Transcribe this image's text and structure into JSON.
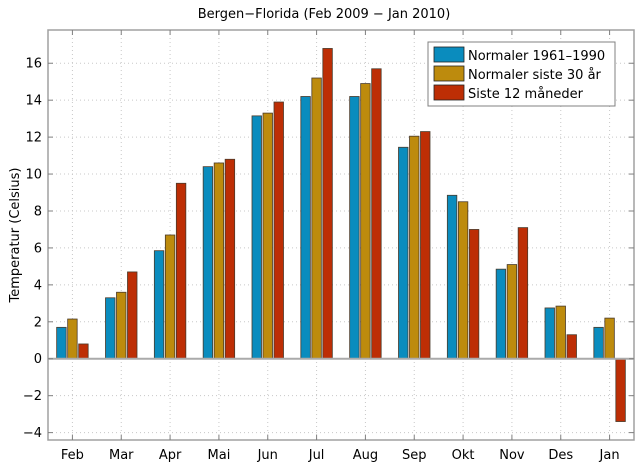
{
  "chart_data": {
    "type": "bar",
    "title": "Bergen−Florida (Feb 2009 − Jan 2010)",
    "xlabel": "",
    "ylabel": "Temperatur (Celsius)",
    "categories": [
      "Feb",
      "Mar",
      "Apr",
      "Mai",
      "Jun",
      "Jul",
      "Aug",
      "Sep",
      "Okt",
      "Nov",
      "Des",
      "Jan"
    ],
    "series": [
      {
        "name": "Normaler 1961–1990",
        "color": "#0a8cbe",
        "values": [
          1.7,
          3.3,
          5.85,
          10.4,
          13.15,
          14.2,
          14.2,
          11.45,
          8.85,
          4.85,
          2.75,
          1.7
        ]
      },
      {
        "name": "Normaler siste 30 år",
        "color": "#bd8b0d",
        "values": [
          2.15,
          3.6,
          6.7,
          10.6,
          13.3,
          15.2,
          14.9,
          12.05,
          8.5,
          5.1,
          2.85,
          2.2
        ]
      },
      {
        "name": "Siste 12 måneder",
        "color": "#bd2e05",
        "values": [
          0.8,
          4.7,
          9.5,
          10.8,
          13.9,
          16.8,
          15.7,
          12.3,
          7.0,
          7.1,
          1.3,
          -3.4
        ]
      }
    ],
    "yticks": [
      -4,
      -2,
      0,
      2,
      4,
      6,
      8,
      10,
      12,
      14,
      16
    ],
    "ytick_labels": [
      "−4",
      "−2",
      "0",
      "2",
      "4",
      "6",
      "8",
      "10",
      "12",
      "14",
      "16"
    ],
    "ylim": [
      -4.4,
      17.8
    ],
    "grid": true,
    "legend_position": "top-right"
  }
}
